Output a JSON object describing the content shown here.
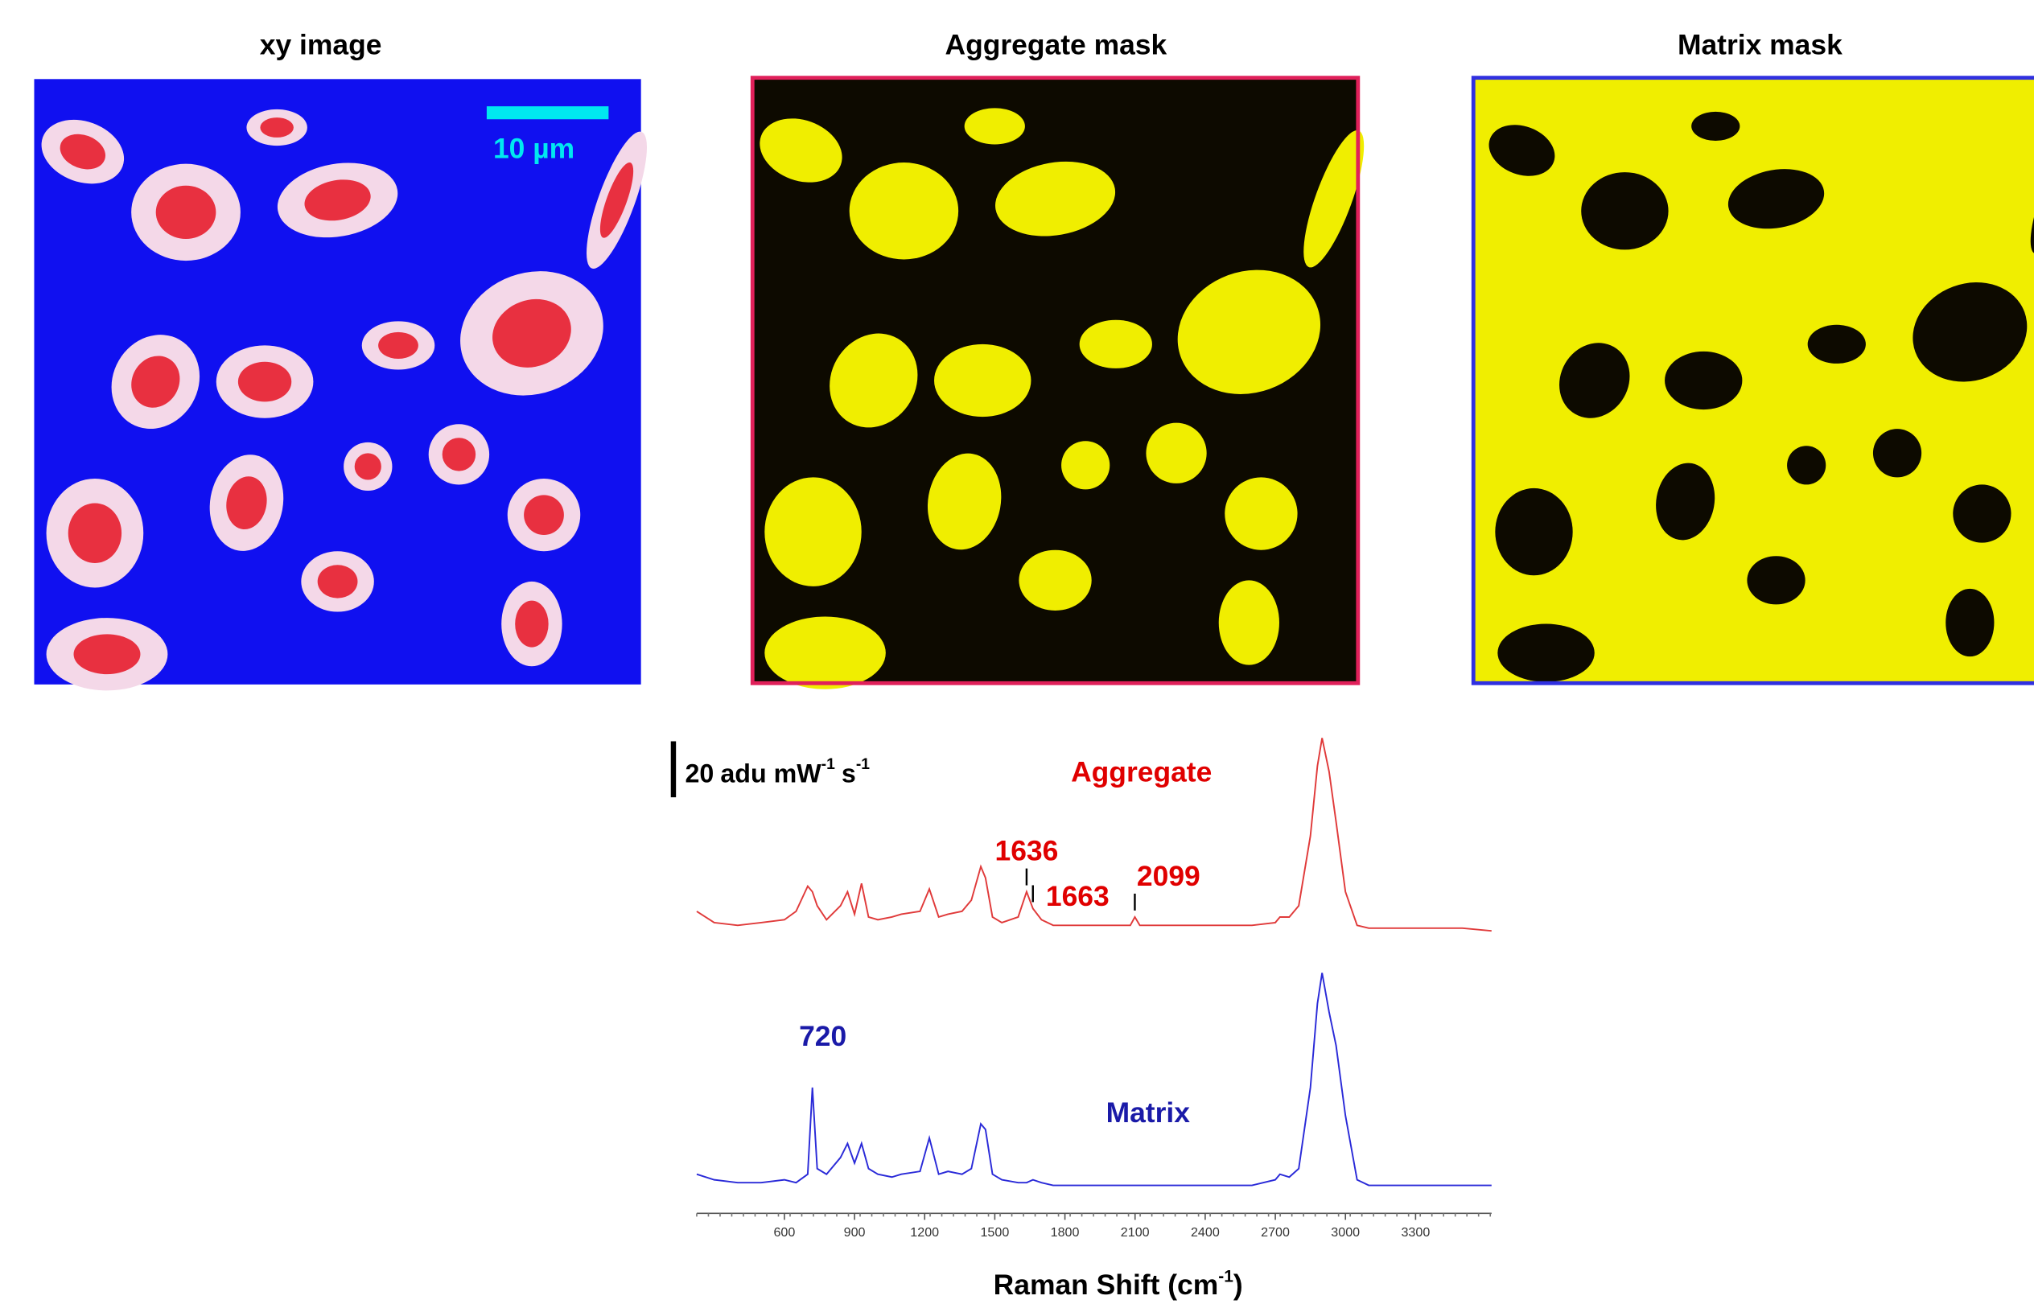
{
  "panels": [
    {
      "title": "xy image",
      "scale_label": "10 µm"
    },
    {
      "title": "Aggregate mask"
    },
    {
      "title": "Matrix mask"
    }
  ],
  "chart_data": {
    "type": "line",
    "x": [
      225,
      300,
      400,
      500,
      600,
      650,
      700,
      720,
      740,
      780,
      840,
      870,
      900,
      930,
      960,
      1000,
      1060,
      1100,
      1180,
      1220,
      1260,
      1300,
      1360,
      1400,
      1440,
      1460,
      1490,
      1530,
      1600,
      1636,
      1663,
      1700,
      1750,
      1800,
      1900,
      2000,
      2080,
      2099,
      2120,
      2200,
      2400,
      2600,
      2700,
      2720,
      2760,
      2800,
      2850,
      2880,
      2900,
      2930,
      2960,
      3000,
      3050,
      3100,
      3300,
      3500,
      3625
    ],
    "series": [
      {
        "name": "Aggregate",
        "color": "#e03a3a",
        "label_color": "#e00000",
        "peaks": [
          1636,
          1663,
          2099
        ],
        "values": [
          108,
          104,
          103,
          104,
          105,
          108,
          117,
          115,
          110,
          105,
          110,
          115,
          107,
          118,
          106,
          105,
          106,
          107,
          108,
          116,
          106,
          107,
          108,
          112,
          124,
          120,
          106,
          104,
          106,
          115,
          109,
          105,
          103,
          103,
          103,
          103,
          103,
          106,
          103,
          103,
          103,
          103,
          104,
          106,
          106,
          110,
          135,
          160,
          170,
          158,
          140,
          115,
          103,
          102,
          102,
          102,
          101
        ]
      },
      {
        "name": "Matrix",
        "color": "#2a2ad8",
        "label_color": "#1a1aa8",
        "peaks": [
          720
        ],
        "values": [
          14,
          12,
          11,
          11,
          12,
          11,
          14,
          45,
          16,
          14,
          20,
          25,
          18,
          25,
          16,
          14,
          13,
          14,
          15,
          27,
          14,
          15,
          14,
          16,
          32,
          30,
          14,
          12,
          11,
          11,
          12,
          11,
          10,
          10,
          10,
          10,
          10,
          10,
          10,
          10,
          10,
          10,
          12,
          14,
          13,
          16,
          45,
          75,
          86,
          72,
          60,
          35,
          12,
          10,
          10,
          10,
          10
        ]
      }
    ],
    "xlim": [
      225,
      3625
    ],
    "xticks": [
      600,
      900,
      1200,
      1500,
      1800,
      2100,
      2400,
      2700,
      3000,
      3300
    ],
    "ylim": [
      0,
      172
    ],
    "scale_bar": {
      "value": 20,
      "unit": [
        "adu mW",
        "-1",
        "s",
        "-1"
      ]
    },
    "xlabel": [
      "Raman Shift (cm",
      "-1",
      ")"
    ]
  }
}
